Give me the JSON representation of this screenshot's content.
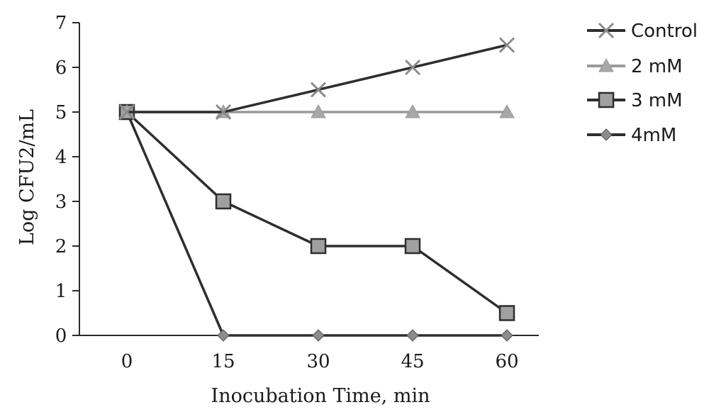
{
  "chart_data": {
    "type": "line",
    "title": "",
    "xlabel": "Inocubation Time, min",
    "ylabel": "Log CFU2/mL",
    "x": [
      0,
      15,
      30,
      45,
      60
    ],
    "x_tick_labels": [
      "0",
      "15",
      "30",
      "45",
      "60"
    ],
    "y_tick_labels": [
      "0",
      "1",
      "2",
      "3",
      "4",
      "5",
      "6",
      "7"
    ],
    "ylim": [
      0,
      7
    ],
    "grid": false,
    "legend_position": "top-right",
    "series": [
      {
        "name": "Control",
        "values": [
          5,
          5,
          5.5,
          6,
          6.5
        ],
        "marker": "x",
        "color": "#2e2e2e",
        "marker_color": "#8a8a8a"
      },
      {
        "name": "2 mM",
        "values": [
          5,
          5,
          5,
          5,
          5
        ],
        "marker": "triangle",
        "color": "#9a9a9a",
        "marker_color": "#a8a8a8"
      },
      {
        "name": "3 mM",
        "values": [
          5,
          3,
          2,
          2,
          0.5
        ],
        "marker": "square",
        "color": "#2e2e2e",
        "marker_color": "#a0a0a0"
      },
      {
        "name": "4mM",
        "values": [
          5,
          0,
          0,
          0,
          0
        ],
        "marker": "diamond",
        "color": "#2e2e2e",
        "marker_color": "#8c8c8c"
      }
    ]
  }
}
